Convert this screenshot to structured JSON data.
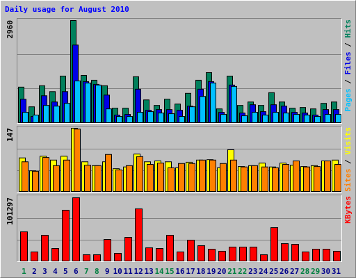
{
  "title": "Daily usage for August 2010",
  "x_axis": {
    "categories": [
      "1",
      "2",
      "3",
      "4",
      "5",
      "6",
      "7",
      "8",
      "9",
      "10",
      "11",
      "12",
      "13",
      "14",
      "15",
      "16",
      "17",
      "18",
      "19",
      "20",
      "21",
      "22",
      "23",
      "24",
      "25",
      "26",
      "27",
      "28",
      "29",
      "30",
      "31"
    ],
    "colors": [
      "#008040",
      "#00008b",
      "#00008b",
      "#00008b",
      "#00008b",
      "#00008b",
      "#008040",
      "#008040",
      "#00008b",
      "#00008b",
      "#00008b",
      "#00008b",
      "#00008b",
      "#008040",
      "#008040",
      "#00008b",
      "#00008b",
      "#00008b",
      "#00008b",
      "#00008b",
      "#008040",
      "#008040",
      "#00008b",
      "#00008b",
      "#00008b",
      "#00008b",
      "#00008b",
      "#008040",
      "#008040",
      "#00008b",
      "#00008b"
    ]
  },
  "legend_separator": " / ",
  "chart_data": [
    {
      "type": "bar",
      "ylim": [
        0,
        2960
      ],
      "yticks": [
        2960
      ],
      "grid": true,
      "series": [
        {
          "name": "Hits",
          "color": "#00805c",
          "values": [
            1030,
            460,
            1070,
            900,
            1350,
            2960,
            1370,
            1230,
            1070,
            420,
            420,
            1330,
            660,
            500,
            680,
            540,
            850,
            1230,
            1450,
            400,
            1350,
            500,
            600,
            500,
            870,
            600,
            420,
            440,
            400,
            560,
            600
          ]
        },
        {
          "name": "Files",
          "color": "#0000e6",
          "values": [
            680,
            180,
            780,
            600,
            900,
            2250,
            1190,
            1110,
            800,
            220,
            240,
            970,
            360,
            380,
            380,
            360,
            480,
            970,
            1190,
            300,
            1090,
            280,
            520,
            320,
            520,
            480,
            300,
            280,
            220,
            380,
            380
          ]
        },
        {
          "name": "Pages",
          "color": "#00c0ff",
          "values": [
            300,
            220,
            500,
            480,
            560,
            1210,
            1150,
            1090,
            400,
            180,
            180,
            300,
            320,
            280,
            260,
            180,
            460,
            760,
            1150,
            240,
            1050,
            200,
            300,
            220,
            300,
            280,
            240,
            220,
            180,
            240,
            240
          ]
        }
      ]
    },
    {
      "type": "bar",
      "ylim": [
        0,
        147
      ],
      "yticks": [
        147
      ],
      "grid": true,
      "series": [
        {
          "name": "Visits",
          "color": "#ffff00",
          "values": [
            78,
            48,
            82,
            73,
            82,
            147,
            69,
            60,
            69,
            53,
            57,
            87,
            69,
            71,
            69,
            55,
            68,
            73,
            74,
            55,
            97,
            58,
            60,
            66,
            57,
            66,
            61,
            58,
            60,
            71,
            73
          ]
        },
        {
          "name": "Sites",
          "color": "#ff8000",
          "values": [
            69,
            47,
            79,
            60,
            73,
            145,
            61,
            60,
            86,
            50,
            60,
            81,
            63,
            66,
            55,
            65,
            65,
            73,
            73,
            65,
            73,
            57,
            60,
            57,
            55,
            63,
            71,
            57,
            58,
            71,
            63
          ]
        }
      ]
    },
    {
      "type": "bar",
      "ylim": [
        0,
        101297
      ],
      "yticks": [
        101297
      ],
      "grid": true,
      "series": [
        {
          "name": "KBytes",
          "color": "#ff0000",
          "values": [
            46700,
            14500,
            41200,
            20000,
            81300,
            101297,
            10000,
            10000,
            34500,
            12200,
            37800,
            83500,
            21100,
            20000,
            41200,
            14500,
            33400,
            24500,
            18900,
            15600,
            22300,
            22300,
            22300,
            10000,
            53400,
            27800,
            26700,
            14500,
            18900,
            18900,
            15600
          ]
        }
      ]
    }
  ]
}
